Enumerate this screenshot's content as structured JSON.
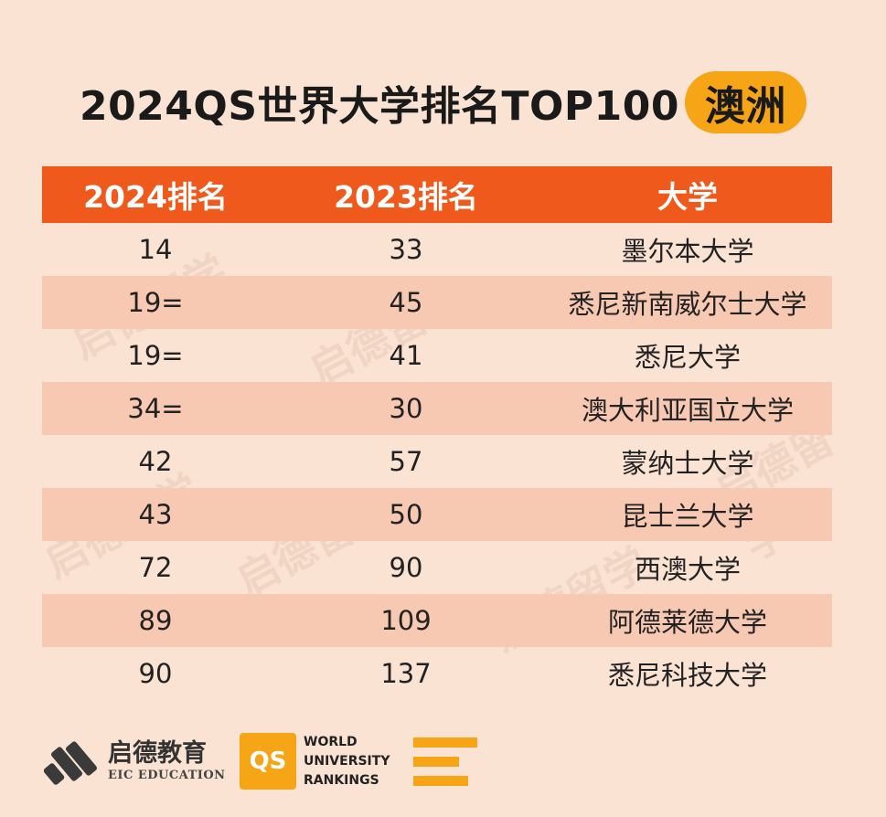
{
  "title": {
    "main": "2024QS世界大学排名TOP100",
    "region": "澳洲"
  },
  "table": {
    "headers": [
      "2024排名",
      "2023排名",
      "大学"
    ],
    "rows": [
      [
        "14",
        "33",
        "墨尔本大学"
      ],
      [
        "19=",
        "45",
        "悉尼新南威尔士大学"
      ],
      [
        "19=",
        "41",
        "悉尼大学"
      ],
      [
        "34=",
        "30",
        "澳大利亚国立大学"
      ],
      [
        "42",
        "57",
        "蒙纳士大学"
      ],
      [
        "43",
        "50",
        "昆士兰大学"
      ],
      [
        "72",
        "90",
        "西澳大学"
      ],
      [
        "89",
        "109",
        "阿德莱德大学"
      ],
      [
        "90",
        "137",
        "悉尼科技大学"
      ]
    ]
  },
  "footer": {
    "brand_cn": "启德教育",
    "brand_en": "EIC EDUCATION",
    "qs_badge": "QS",
    "qs_lines": [
      "WORLD",
      "UNIVERSITY",
      "RANKINGS"
    ]
  },
  "watermark": {
    "cn": "启德留学",
    "en": "EIC EDUCATION"
  },
  "colors": {
    "background": "#fbe3d3",
    "header": "#ef5a1c",
    "stripe": "#f7c9b3",
    "accent": "#f6a516"
  }
}
